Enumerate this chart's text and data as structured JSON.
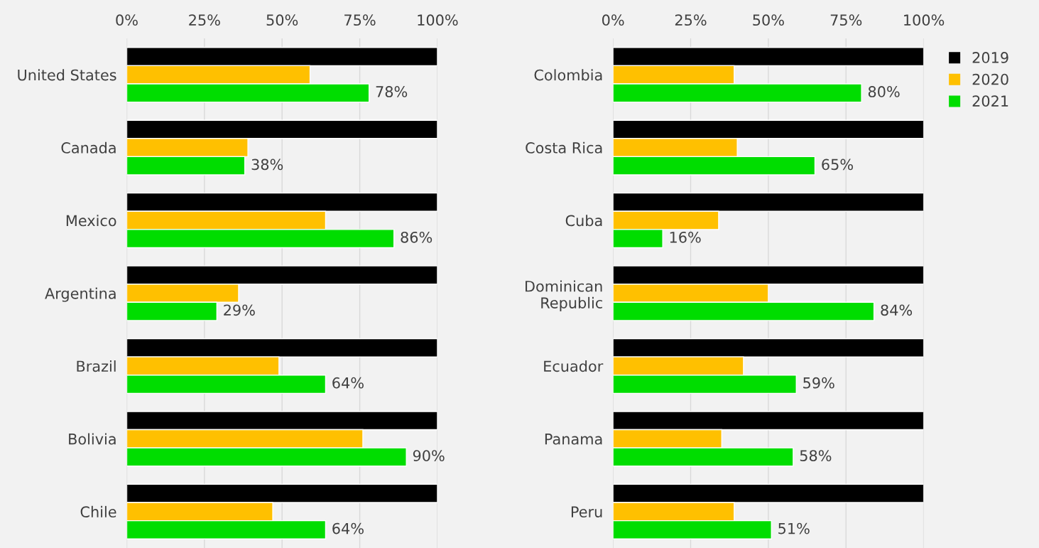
{
  "chart_data": [
    {
      "type": "bar",
      "orientation": "horizontal",
      "categories": [
        "United States",
        "Canada",
        "Mexico",
        "Argentina",
        "Brazil",
        "Bolivia",
        "Chile"
      ],
      "series": [
        {
          "name": "2019",
          "color": "#000000",
          "values": [
            100,
            100,
            100,
            100,
            100,
            100,
            100
          ]
        },
        {
          "name": "2020",
          "color": "#ffc000",
          "values": [
            59,
            39,
            64,
            36,
            49,
            76,
            47
          ]
        },
        {
          "name": "2021",
          "color": "#00dd00",
          "values": [
            78,
            38,
            86,
            29,
            64,
            90,
            64
          ],
          "value_labels": [
            "78%",
            "38%",
            "86%",
            "29%",
            "64%",
            "90%",
            "64%"
          ]
        }
      ],
      "xlim": [
        0,
        100
      ],
      "xticks": [
        {
          "value": 0,
          "label": "0%"
        },
        {
          "value": 25,
          "label": "25%"
        },
        {
          "value": 50,
          "label": "50%"
        },
        {
          "value": 75,
          "label": "75%"
        },
        {
          "value": 100,
          "label": "100%"
        }
      ],
      "grid": "x",
      "legend": "top right"
    },
    {
      "type": "bar",
      "orientation": "horizontal",
      "categories": [
        "Colombia",
        "Costa Rica",
        "Cuba",
        "Dominican\nRepublic",
        "Ecuador",
        "Panama",
        "Peru"
      ],
      "series": [
        {
          "name": "2019",
          "color": "#000000",
          "values": [
            100,
            100,
            100,
            100,
            100,
            100,
            100
          ]
        },
        {
          "name": "2020",
          "color": "#ffc000",
          "values": [
            39,
            40,
            34,
            50,
            42,
            35,
            39
          ]
        },
        {
          "name": "2021",
          "color": "#00dd00",
          "values": [
            80,
            65,
            16,
            84,
            59,
            58,
            51
          ],
          "value_labels": [
            "80%",
            "65%",
            "16%",
            "84%",
            "59%",
            "58%",
            "51%"
          ]
        }
      ],
      "xlim": [
        0,
        100
      ],
      "xticks": [
        {
          "value": 0,
          "label": "0%"
        },
        {
          "value": 25,
          "label": "25%"
        },
        {
          "value": 50,
          "label": "50%"
        },
        {
          "value": 75,
          "label": "75%"
        },
        {
          "value": 100,
          "label": "100%"
        }
      ],
      "grid": "x",
      "legend": "top right"
    }
  ]
}
